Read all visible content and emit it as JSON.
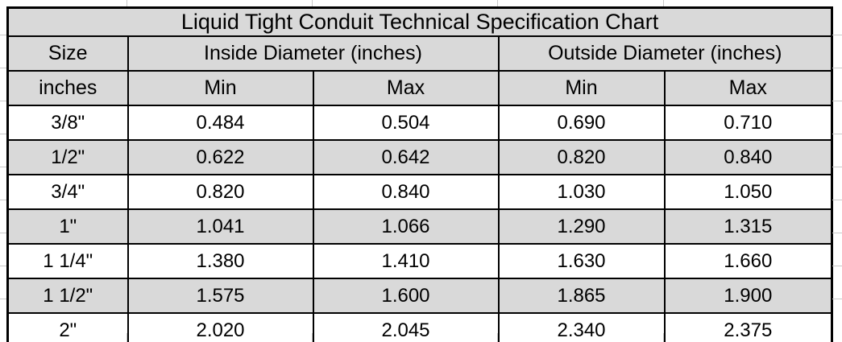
{
  "chart_data": {
    "type": "table",
    "title": "Liquid Tight Conduit Technical Specification Chart",
    "header": {
      "groups": [
        {
          "label": "Size",
          "span": 1
        },
        {
          "label": "Inside Diameter (inches)",
          "span": 2
        },
        {
          "label": "Outside Diameter (inches)",
          "span": 2
        }
      ],
      "sub": [
        "inches",
        "Min",
        "Max",
        "Min",
        "Max"
      ]
    },
    "columns": [
      "Size (inches)",
      "Inside Diameter Min (inches)",
      "Inside Diameter Max (inches)",
      "Outside Diameter Min (inches)",
      "Outside Diameter Max (inches)"
    ],
    "rows": [
      [
        "3/8\"",
        "0.484",
        "0.504",
        "0.690",
        "0.710"
      ],
      [
        "1/2\"",
        "0.622",
        "0.642",
        "0.820",
        "0.840"
      ],
      [
        "3/4\"",
        "0.820",
        "0.840",
        "1.030",
        "1.050"
      ],
      [
        "1\"",
        "1.041",
        "1.066",
        "1.290",
        "1.315"
      ],
      [
        "1 1/4\"",
        "1.380",
        "1.410",
        "1.630",
        "1.660"
      ],
      [
        "1 1/2\"",
        "1.575",
        "1.600",
        "1.865",
        "1.900"
      ],
      [
        "2\"",
        "2.020",
        "2.045",
        "2.340",
        "2.375"
      ]
    ],
    "colors": {
      "header_bg": "#d9d9d9",
      "row_bg": "#ffffff",
      "alt_row_bg": "#d9d9d9",
      "border": "#000000",
      "text": "#000000",
      "page_bg": "#ffffff",
      "margin_gridline": "#c9c9c9"
    },
    "layout_hints": {
      "grid": "all-borders",
      "alternating_rows": true,
      "title_merged_across_all_columns": true
    }
  }
}
